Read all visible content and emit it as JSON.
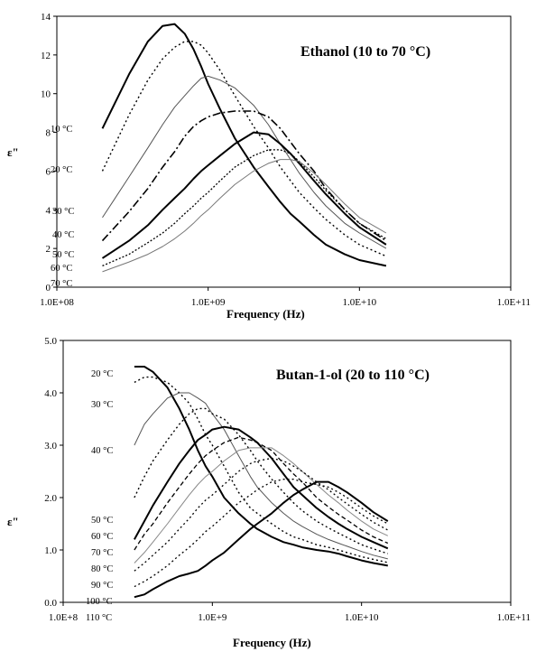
{
  "chart_data": [
    {
      "type": "line",
      "title": "Ethanol (10 to 70 °C)",
      "xlabel": "Frequency (Hz)",
      "ylabel": "ε\"",
      "xscale": "log",
      "xlim": [
        100000000,
        100000000000
      ],
      "ylim": [
        0,
        14
      ],
      "xticks": [
        100000000,
        1000000000,
        10000000000,
        100000000000
      ],
      "xtick_labels": [
        "1.0E+08",
        "1.0E+09",
        "1.0E+10",
        "1.0E+11"
      ],
      "yticks": [
        0,
        2,
        4,
        6,
        8,
        10,
        12,
        14
      ],
      "ytick_labels": [
        "0",
        "2",
        "4",
        "6",
        "8",
        "10",
        "12",
        "14"
      ],
      "grid": false,
      "legend": "inline labels at left",
      "series_labels": [
        "10 °C",
        "20 °C",
        "30 °C",
        "40 °C",
        "50 °C",
        "60 °C",
        "70 °C"
      ],
      "x": [
        200000000,
        300000000,
        400000000,
        500000000,
        600000000,
        700000000,
        800000000,
        900000000,
        1000000000,
        1200000000,
        1500000000,
        2000000000,
        2500000000,
        3000000000,
        3500000000,
        4000000000,
        5000000000,
        6000000000,
        8000000000,
        10000000000,
        15000000000
      ],
      "series": [
        {
          "values": [
            8.2,
            11.0,
            12.7,
            13.5,
            13.6,
            13.1,
            12.3,
            11.4,
            10.5,
            9.2,
            7.7,
            6.2,
            5.2,
            4.4,
            3.8,
            3.4,
            2.7,
            2.2,
            1.7,
            1.4,
            1.1
          ],
          "color": "#000000",
          "width": 2.0,
          "dash": ""
        },
        {
          "values": [
            6.0,
            8.9,
            10.7,
            11.8,
            12.4,
            12.7,
            12.7,
            12.5,
            12.1,
            11.2,
            9.9,
            8.3,
            7.2,
            6.2,
            5.5,
            4.9,
            4.1,
            3.5,
            2.7,
            2.2,
            1.6
          ],
          "color": "#000000",
          "width": 1.4,
          "dash": "2 3"
        },
        {
          "values": [
            3.6,
            5.7,
            7.2,
            8.4,
            9.3,
            9.9,
            10.4,
            10.8,
            10.9,
            10.7,
            10.3,
            9.4,
            8.4,
            7.4,
            6.6,
            5.9,
            4.9,
            4.2,
            3.3,
            2.8,
            2.0
          ],
          "color": "#555555",
          "width": 1.0,
          "dash": ""
        },
        {
          "values": [
            2.4,
            3.9,
            5.1,
            6.2,
            7.0,
            7.8,
            8.3,
            8.6,
            8.8,
            9.0,
            9.1,
            9.1,
            8.8,
            8.2,
            7.5,
            6.9,
            6.0,
            5.1,
            4.0,
            3.3,
            2.4
          ],
          "color": "#000000",
          "width": 1.6,
          "dash": "9 3 2 3"
        },
        {
          "values": [
            1.5,
            2.4,
            3.2,
            4.0,
            4.6,
            5.1,
            5.6,
            6.0,
            6.3,
            6.8,
            7.4,
            8.0,
            7.9,
            7.4,
            6.9,
            6.4,
            5.5,
            4.8,
            3.8,
            3.1,
            2.2
          ],
          "color": "#000000",
          "width": 2.0,
          "dash": ""
        },
        {
          "values": [
            1.1,
            1.7,
            2.3,
            2.8,
            3.3,
            3.8,
            4.2,
            4.6,
            4.9,
            5.5,
            6.2,
            6.8,
            7.1,
            7.1,
            6.9,
            6.5,
            5.7,
            5.0,
            4.0,
            3.3,
            2.5
          ],
          "color": "#000000",
          "width": 1.3,
          "dash": "2 2"
        },
        {
          "values": [
            0.8,
            1.3,
            1.7,
            2.1,
            2.5,
            2.9,
            3.3,
            3.7,
            4.0,
            4.6,
            5.3,
            6.0,
            6.4,
            6.6,
            6.6,
            6.5,
            5.9,
            5.3,
            4.3,
            3.6,
            2.8
          ],
          "color": "#777777",
          "width": 1.0,
          "dash": ""
        }
      ]
    },
    {
      "type": "line",
      "title": "Butan-1-ol  (20 to 110 °C)",
      "xlabel": "Frequency (Hz)",
      "ylabel": "ε\"",
      "xscale": "log",
      "xlim": [
        100000000,
        100000000000
      ],
      "ylim": [
        0,
        5
      ],
      "xticks": [
        100000000,
        1000000000,
        10000000000,
        100000000000
      ],
      "xtick_labels": [
        "1.0E+8",
        "1.0E+9",
        "1.0E+10",
        "1.0E+11"
      ],
      "yticks": [
        0,
        1,
        2,
        3,
        4,
        5
      ],
      "ytick_labels": [
        "0.0",
        "1.0",
        "2.0",
        "3.0",
        "4.0",
        "5.0"
      ],
      "grid": false,
      "legend": "inline labels at left",
      "series_labels": [
        "20 °C",
        "30 °C",
        "40 °C",
        "50 °C",
        "60 °C",
        "70 °C",
        "80 °C",
        "90 °C",
        "100 °C",
        "110 °C"
      ],
      "x": [
        300000000,
        350000000,
        400000000,
        500000000,
        600000000,
        700000000,
        800000000,
        900000000,
        1000000000,
        1200000000,
        1500000000,
        1800000000,
        2000000000,
        2500000000,
        3000000000,
        3500000000,
        4000000000,
        5000000000,
        6000000000,
        7000000000,
        8000000000,
        10000000000,
        12000000000,
        15000000000
      ],
      "series": [
        {
          "values": [
            4.5,
            4.5,
            4.4,
            4.1,
            3.7,
            3.3,
            2.9,
            2.6,
            2.4,
            2.0,
            1.7,
            1.5,
            1.4,
            1.25,
            1.15,
            1.1,
            1.05,
            1.0,
            0.97,
            0.93,
            0.88,
            0.8,
            0.75,
            0.7
          ],
          "color": "#000000",
          "width": 2.0,
          "dash": ""
        },
        {
          "values": [
            4.2,
            4.3,
            4.3,
            4.2,
            4.0,
            3.8,
            3.5,
            3.2,
            3.0,
            2.6,
            2.1,
            1.8,
            1.7,
            1.5,
            1.35,
            1.25,
            1.2,
            1.1,
            1.05,
            1.0,
            0.95,
            0.87,
            0.82,
            0.76
          ],
          "color": "#000000",
          "width": 1.4,
          "dash": "2 3"
        },
        {
          "values": [
            3.0,
            3.4,
            3.6,
            3.9,
            4.0,
            4.0,
            3.9,
            3.8,
            3.6,
            3.3,
            2.8,
            2.4,
            2.2,
            1.9,
            1.7,
            1.55,
            1.45,
            1.3,
            1.2,
            1.13,
            1.07,
            0.97,
            0.9,
            0.83
          ],
          "color": "#555555",
          "width": 1.0,
          "dash": ""
        },
        {
          "values": [
            2.0,
            2.4,
            2.7,
            3.1,
            3.4,
            3.6,
            3.7,
            3.7,
            3.6,
            3.5,
            3.2,
            2.9,
            2.7,
            2.35,
            2.1,
            1.9,
            1.75,
            1.55,
            1.42,
            1.32,
            1.24,
            1.1,
            1.02,
            0.93
          ],
          "color": "#000000",
          "width": 1.4,
          "dash": "2 3"
        },
        {
          "values": [
            1.2,
            1.55,
            1.85,
            2.3,
            2.65,
            2.9,
            3.1,
            3.2,
            3.3,
            3.35,
            3.3,
            3.15,
            3.05,
            2.75,
            2.45,
            2.2,
            2.05,
            1.8,
            1.63,
            1.5,
            1.4,
            1.25,
            1.15,
            1.03
          ],
          "color": "#000000",
          "width": 2.0,
          "dash": ""
        },
        {
          "values": [
            1.0,
            1.3,
            1.5,
            1.9,
            2.2,
            2.45,
            2.65,
            2.8,
            2.9,
            3.05,
            3.15,
            3.1,
            3.05,
            2.9,
            2.65,
            2.45,
            2.3,
            2.0,
            1.82,
            1.68,
            1.57,
            1.38,
            1.25,
            1.13
          ],
          "color": "#000000",
          "width": 1.3,
          "dash": "5 3"
        },
        {
          "values": [
            0.75,
            0.95,
            1.15,
            1.5,
            1.8,
            2.05,
            2.25,
            2.4,
            2.5,
            2.7,
            2.9,
            2.95,
            2.95,
            2.95,
            2.8,
            2.65,
            2.5,
            2.25,
            2.05,
            1.9,
            1.76,
            1.55,
            1.4,
            1.27
          ],
          "color": "#888888",
          "width": 1.0,
          "dash": ""
        },
        {
          "values": [
            0.6,
            0.75,
            0.9,
            1.15,
            1.4,
            1.6,
            1.8,
            1.95,
            2.05,
            2.25,
            2.5,
            2.65,
            2.7,
            2.75,
            2.7,
            2.6,
            2.5,
            2.3,
            2.15,
            2.0,
            1.88,
            1.68,
            1.53,
            1.38
          ],
          "color": "#000000",
          "width": 1.3,
          "dash": "2 3"
        },
        {
          "values": [
            0.3,
            0.4,
            0.5,
            0.7,
            0.9,
            1.05,
            1.2,
            1.35,
            1.45,
            1.65,
            1.9,
            2.05,
            2.15,
            2.3,
            2.35,
            2.35,
            2.3,
            2.25,
            2.2,
            2.1,
            2.0,
            1.8,
            1.65,
            1.5
          ],
          "color": "#000000",
          "width": 1.3,
          "dash": "2 3"
        },
        {
          "values": [
            0.1,
            0.15,
            0.25,
            0.4,
            0.5,
            0.55,
            0.6,
            0.7,
            0.8,
            0.95,
            1.2,
            1.4,
            1.5,
            1.7,
            1.9,
            2.05,
            2.15,
            2.3,
            2.3,
            2.2,
            2.1,
            1.9,
            1.72,
            1.55
          ],
          "color": "#000000",
          "width": 2.0,
          "dash": ""
        }
      ]
    }
  ]
}
